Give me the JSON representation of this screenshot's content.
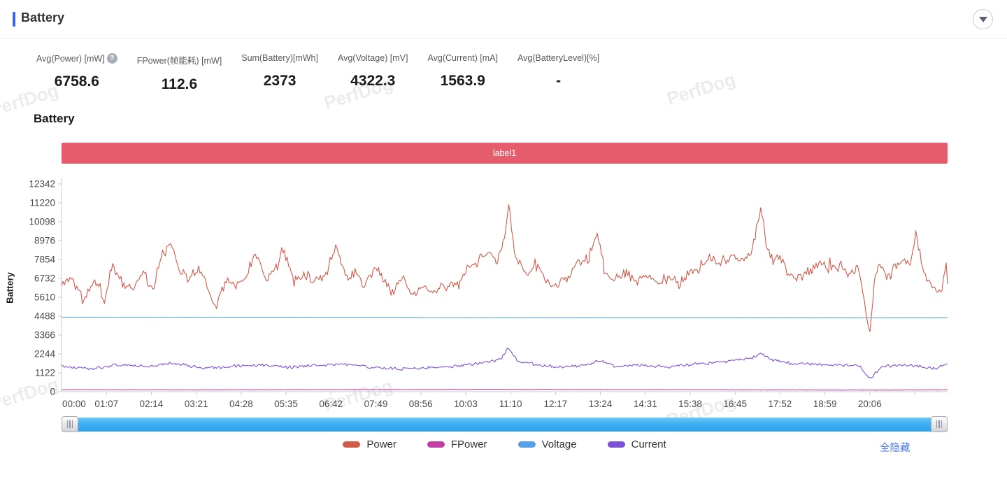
{
  "panel": {
    "title": "Battery"
  },
  "stats": {
    "items": [
      {
        "label": "Avg(Power) [mW]",
        "value": "6758.6",
        "has_help": true
      },
      {
        "label": "FPower(帧能耗) [mW]",
        "value": "112.6"
      },
      {
        "label": "Sum(Battery)[mWh]",
        "value": "2373"
      },
      {
        "label": "Avg(Voltage) [mV]",
        "value": "4322.3"
      },
      {
        "label": "Avg(Current) [mA]",
        "value": "1563.9"
      },
      {
        "label": "Avg(BatteryLevel)[%]",
        "value": "-"
      }
    ],
    "help_glyph": "?"
  },
  "chart": {
    "title": "Battery",
    "band_label": "label1",
    "band_color": "#e55c6c",
    "hide_all_label": "全隐藏",
    "watermark": "PerfDog"
  },
  "chart_data": {
    "type": "line",
    "title": "Battery",
    "ylabel": "Battery",
    "ylim": [
      0,
      12342
    ],
    "y_ticks": [
      0,
      1122,
      2244,
      3366,
      4488,
      5610,
      6732,
      7854,
      8976,
      10098,
      11220,
      12342
    ],
    "x_tick_labels": [
      "00:00",
      "01:07",
      "02:14",
      "03:21",
      "04:28",
      "05:35",
      "06:42",
      "07:49",
      "08:56",
      "10:03",
      "11:10",
      "12:17",
      "13:24",
      "14:31",
      "15:38",
      "16:45",
      "17:52",
      "18:59",
      "20:06"
    ],
    "x_tick_interval_s": 67,
    "x_total_s": 1322,
    "grid": false,
    "legend_position": "bottom",
    "axis_color": "#c5cbd9",
    "series": [
      {
        "name": "Power",
        "color": "#d15a4a",
        "noise": 380,
        "points": [
          [
            0,
            6300
          ],
          [
            13,
            6900
          ],
          [
            33,
            5400
          ],
          [
            49,
            6600
          ],
          [
            65,
            5300
          ],
          [
            75,
            7600
          ],
          [
            91,
            6400
          ],
          [
            106,
            6100
          ],
          [
            122,
            7200
          ],
          [
            136,
            6000
          ],
          [
            148,
            7900
          ],
          [
            164,
            8900
          ],
          [
            174,
            7500
          ],
          [
            190,
            6700
          ],
          [
            206,
            7400
          ],
          [
            221,
            5800
          ],
          [
            232,
            5100
          ],
          [
            247,
            6900
          ],
          [
            263,
            6300
          ],
          [
            279,
            7000
          ],
          [
            289,
            8400
          ],
          [
            305,
            6700
          ],
          [
            320,
            7300
          ],
          [
            331,
            8500
          ],
          [
            347,
            6500
          ],
          [
            362,
            7200
          ],
          [
            378,
            6400
          ],
          [
            394,
            7000
          ],
          [
            409,
            8600
          ],
          [
            425,
            6800
          ],
          [
            441,
            7200
          ],
          [
            451,
            6200
          ],
          [
            467,
            7400
          ],
          [
            482,
            6600
          ],
          [
            493,
            5800
          ],
          [
            508,
            6900
          ],
          [
            524,
            5600
          ],
          [
            540,
            6500
          ],
          [
            550,
            5700
          ],
          [
            566,
            6400
          ],
          [
            581,
            6200
          ],
          [
            592,
            6400
          ],
          [
            607,
            7300
          ],
          [
            623,
            7800
          ],
          [
            639,
            8300
          ],
          [
            649,
            7600
          ],
          [
            660,
            8900
          ],
          [
            667,
            11220
          ],
          [
            675,
            8200
          ],
          [
            686,
            7600
          ],
          [
            696,
            7100
          ],
          [
            712,
            7400
          ],
          [
            722,
            6500
          ],
          [
            738,
            6300
          ],
          [
            754,
            6700
          ],
          [
            769,
            7600
          ],
          [
            785,
            7900
          ],
          [
            801,
            9300
          ],
          [
            811,
            7000
          ],
          [
            827,
            6700
          ],
          [
            842,
            7000
          ],
          [
            858,
            6600
          ],
          [
            874,
            6900
          ],
          [
            889,
            6500
          ],
          [
            905,
            6800
          ],
          [
            921,
            6400
          ],
          [
            936,
            7000
          ],
          [
            952,
            7400
          ],
          [
            968,
            7900
          ],
          [
            983,
            7600
          ],
          [
            999,
            8100
          ],
          [
            1015,
            7800
          ],
          [
            1030,
            8300
          ],
          [
            1044,
            11000
          ],
          [
            1051,
            8700
          ],
          [
            1062,
            7800
          ],
          [
            1072,
            8200
          ],
          [
            1083,
            7000
          ],
          [
            1098,
            6800
          ],
          [
            1114,
            7100
          ],
          [
            1130,
            7600
          ],
          [
            1145,
            7200
          ],
          [
            1161,
            7500
          ],
          [
            1177,
            7000
          ],
          [
            1190,
            7300
          ],
          [
            1206,
            3400
          ],
          [
            1213,
            6800
          ],
          [
            1221,
            7600
          ],
          [
            1234,
            6700
          ],
          [
            1244,
            7600
          ],
          [
            1255,
            7800
          ],
          [
            1265,
            7400
          ],
          [
            1275,
            9400
          ],
          [
            1284,
            7500
          ],
          [
            1291,
            6600
          ],
          [
            1299,
            6200
          ],
          [
            1307,
            6000
          ],
          [
            1314,
            5900
          ],
          [
            1319,
            7800
          ],
          [
            1322,
            6700
          ]
        ]
      },
      {
        "name": "FPower",
        "color": "#c33fa6",
        "noise": 16,
        "points": [
          [
            0,
            115
          ],
          [
            221,
            105
          ],
          [
            667,
            140
          ],
          [
            952,
            110
          ],
          [
            1206,
            95
          ],
          [
            1322,
            110
          ]
        ]
      },
      {
        "name": "Voltage",
        "color": "#55a0e6",
        "noise": 5,
        "points": [
          [
            0,
            4430
          ],
          [
            326,
            4420
          ],
          [
            667,
            4400
          ],
          [
            952,
            4395
          ],
          [
            1206,
            4385
          ],
          [
            1322,
            4390
          ]
        ]
      },
      {
        "name": "Current",
        "color": "#7a52d6",
        "noise": 110,
        "points": [
          [
            0,
            1500
          ],
          [
            44,
            1350
          ],
          [
            86,
            1600
          ],
          [
            127,
            1500
          ],
          [
            164,
            1700
          ],
          [
            211,
            1400
          ],
          [
            253,
            1500
          ],
          [
            294,
            1600
          ],
          [
            336,
            1450
          ],
          [
            378,
            1550
          ],
          [
            420,
            1650
          ],
          [
            461,
            1450
          ],
          [
            503,
            1350
          ],
          [
            545,
            1400
          ],
          [
            587,
            1500
          ],
          [
            628,
            1700
          ],
          [
            654,
            1900
          ],
          [
            667,
            2600
          ],
          [
            681,
            1800
          ],
          [
            712,
            1600
          ],
          [
            743,
            1450
          ],
          [
            785,
            1600
          ],
          [
            801,
            1850
          ],
          [
            827,
            1500
          ],
          [
            869,
            1550
          ],
          [
            910,
            1500
          ],
          [
            952,
            1650
          ],
          [
            994,
            1800
          ],
          [
            1030,
            2000
          ],
          [
            1044,
            2300
          ],
          [
            1056,
            1950
          ],
          [
            1088,
            1700
          ],
          [
            1119,
            1650
          ],
          [
            1161,
            1600
          ],
          [
            1190,
            1550
          ],
          [
            1206,
            750
          ],
          [
            1224,
            1500
          ],
          [
            1265,
            1600
          ],
          [
            1286,
            1450
          ],
          [
            1307,
            1400
          ],
          [
            1319,
            1700
          ],
          [
            1322,
            1600
          ]
        ]
      }
    ]
  }
}
